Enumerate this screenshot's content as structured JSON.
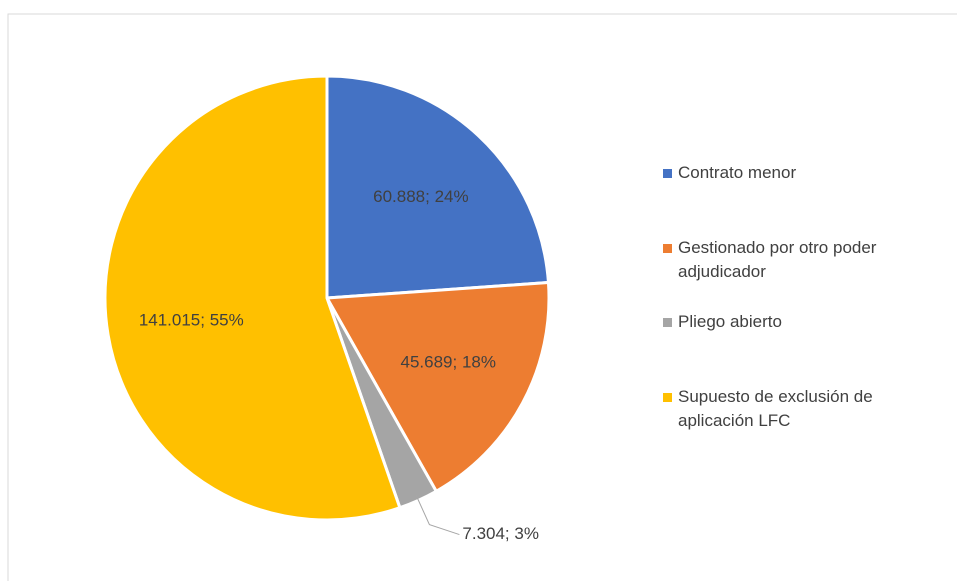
{
  "chart_data": {
    "type": "pie",
    "categories": [
      "Contrato menor",
      "Gestionado por otro poder adjudicador",
      "Pliego abierto",
      "Supuesto de exclusión de aplicación LFC"
    ],
    "values": [
      60888,
      45689,
      7304,
      141015
    ],
    "value_labels": [
      "60.888; 24%",
      "45.689; 18%",
      "7.304; 3%",
      "141.015; 55%"
    ],
    "colors": [
      "#4472c4",
      "#ed7d31",
      "#a5a5a5",
      "#ffc000"
    ],
    "legend": "right"
  }
}
